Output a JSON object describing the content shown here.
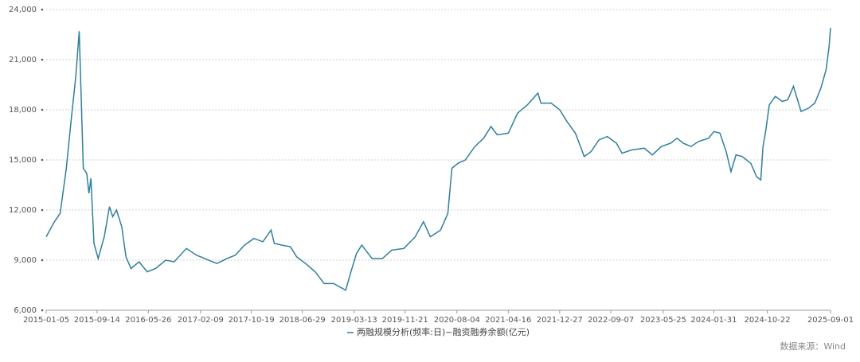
{
  "chart_data": {
    "type": "line",
    "x": [
      "2015-01-05",
      "2015-02-15",
      "2015-03-15",
      "2015-04-15",
      "2015-05-10",
      "2015-06-01",
      "2015-06-18",
      "2015-07-08",
      "2015-07-25",
      "2015-08-05",
      "2015-08-15",
      "2015-08-30",
      "2015-09-20",
      "2015-10-20",
      "2015-11-15",
      "2015-12-01",
      "2015-12-20",
      "2016-01-15",
      "2016-02-05",
      "2016-03-01",
      "2016-04-10",
      "2016-05-20",
      "2016-07-01",
      "2016-08-20",
      "2016-10-01",
      "2016-12-01",
      "2017-01-20",
      "2017-03-01",
      "2017-05-01",
      "2017-06-20",
      "2017-08-01",
      "2017-09-15",
      "2017-11-01",
      "2017-12-15",
      "2018-01-25",
      "2018-02-10",
      "2018-03-20",
      "2018-05-01",
      "2018-06-01",
      "2018-07-15",
      "2018-09-01",
      "2018-10-15",
      "2018-12-01",
      "2019-01-30",
      "2019-02-25",
      "2019-03-25",
      "2019-04-20",
      "2019-06-10",
      "2019-08-01",
      "2019-09-15",
      "2019-11-15",
      "2020-01-10",
      "2020-02-20",
      "2020-03-25",
      "2020-05-15",
      "2020-06-20",
      "2020-07-10",
      "2020-08-10",
      "2020-09-15",
      "2020-11-01",
      "2020-12-15",
      "2021-01-20",
      "2021-02-20",
      "2021-04-16",
      "2021-06-01",
      "2021-07-20",
      "2021-09-10",
      "2021-09-25",
      "2021-11-15",
      "2021-12-27",
      "2022-02-01",
      "2022-03-15",
      "2022-04-28",
      "2022-06-01",
      "2022-07-10",
      "2022-08-20",
      "2022-10-05",
      "2022-11-01",
      "2022-12-20",
      "2023-02-20",
      "2023-04-01",
      "2023-05-15",
      "2023-07-01",
      "2023-08-01",
      "2023-09-01",
      "2023-10-10",
      "2023-11-15",
      "2024-01-05",
      "2024-01-31",
      "2024-03-01",
      "2024-04-01",
      "2024-04-25",
      "2024-05-20",
      "2024-06-20",
      "2024-08-01",
      "2024-08-30",
      "2024-09-20",
      "2024-10-01",
      "2024-10-15",
      "2024-11-01",
      "2024-12-01",
      "2025-01-05",
      "2025-02-01",
      "2025-03-01",
      "2025-04-08",
      "2025-05-15",
      "2025-06-15",
      "2025-07-15",
      "2025-08-10",
      "2025-08-25",
      "2025-09-01"
    ],
    "series": [
      {
        "name": "两融规模分析(频率:日)~融资融券余额(亿元)",
        "color": "#2f7f9c",
        "values": [
          10400,
          11300,
          11800,
          14500,
          17500,
          20000,
          22700,
          14500,
          14200,
          13000,
          13900,
          10000,
          9100,
          10400,
          12200,
          11600,
          12000,
          11000,
          9200,
          8500,
          8900,
          8300,
          8500,
          9000,
          8900,
          9700,
          9300,
          9100,
          8800,
          9100,
          9300,
          9900,
          10300,
          10100,
          10800,
          10000,
          9900,
          9800,
          9200,
          8800,
          8300,
          7600,
          7600,
          7200,
          8300,
          9400,
          9900,
          9100,
          9100,
          9600,
          9700,
          10400,
          11300,
          10400,
          10800,
          11800,
          14500,
          14800,
          15000,
          15800,
          16300,
          17000,
          16500,
          16600,
          17800,
          18300,
          19000,
          18400,
          18400,
          18000,
          17300,
          16600,
          15200,
          15500,
          16200,
          16400,
          16000,
          15400,
          15600,
          15700,
          15300,
          15800,
          16000,
          16300,
          16000,
          15800,
          16100,
          16300,
          16700,
          16600,
          15500,
          14300,
          15300,
          15200,
          14800,
          14000,
          13800,
          15800,
          16800,
          18300,
          18800,
          18500,
          18600,
          19400,
          17900,
          18100,
          18400,
          19300,
          20400,
          21800,
          22900
        ]
      }
    ],
    "xlim": [
      "2015-01-05",
      "2025-09-01"
    ],
    "xticks": [
      "2015-01-05",
      "2015-09-14",
      "2016-05-26",
      "2017-02-09",
      "2017-10-19",
      "2018-06-29",
      "2019-03-13",
      "2019-11-21",
      "2020-08-04",
      "2021-04-16",
      "2021-12-27",
      "2022-09-07",
      "2023-05-25",
      "2024-01-31",
      "2024-10-22",
      "2025-09-01"
    ],
    "ylim": [
      6000,
      24000
    ],
    "yticks": [
      {
        "value": 6000,
        "label": "6,000"
      },
      {
        "value": 9000,
        "label": "9,000"
      },
      {
        "value": 12000,
        "label": "12,000"
      },
      {
        "value": 15000,
        "label": "15,000"
      },
      {
        "value": 18000,
        "label": "18,000"
      },
      {
        "value": 21000,
        "label": "21,000"
      },
      {
        "value": 24000,
        "label": "24,000"
      }
    ],
    "grid": true,
    "source": "数据来源：Wind"
  }
}
